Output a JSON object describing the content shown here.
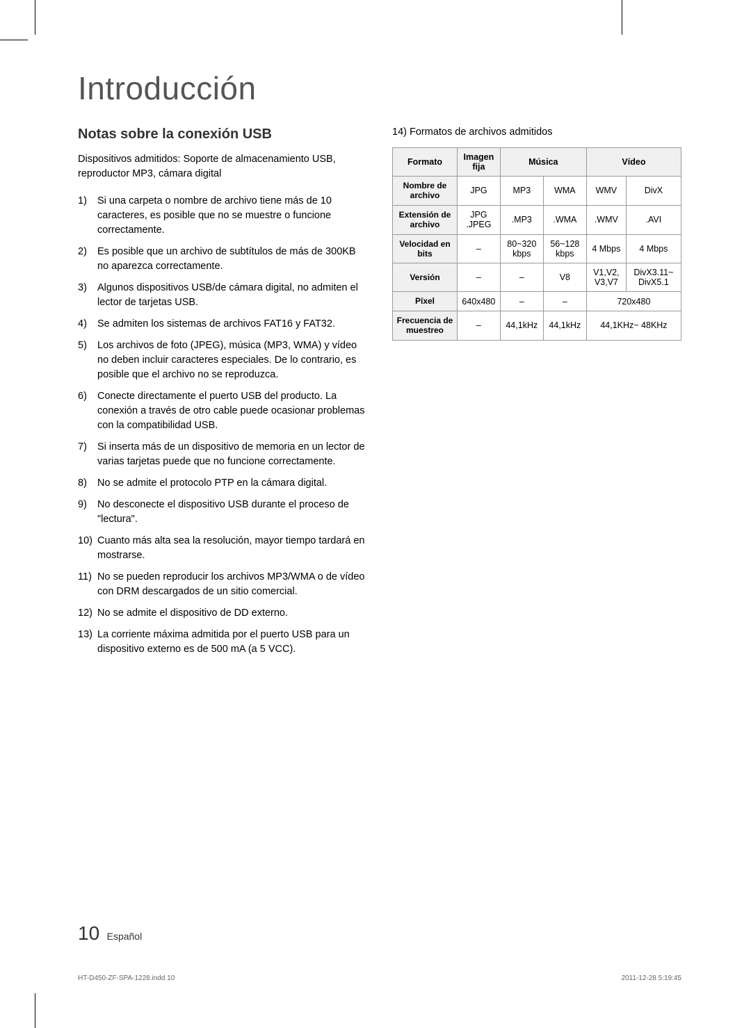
{
  "page": {
    "main_title": "Introducción",
    "section_title": "Notas sobre la conexión USB",
    "intro_text": "Dispositivos admitidos: Soporte de almacenamiento USB, reproductor MP3, cámara digital",
    "notes": [
      "Si una carpeta o nombre de archivo tiene más de 10 caracteres, es posible que no se muestre o funcione correctamente.",
      "Es posible que un archivo de subtítulos de más de 300KB no aparezca correctamente.",
      "Algunos dispositivos USB/de cámara digital, no admiten el lector de tarjetas USB.",
      "Se admiten los sistemas de archivos FAT16 y FAT32.",
      "Los archivos de foto (JPEG), música (MP3, WMA) y vídeo no deben incluir caracteres especiales. De lo contrario, es posible que el archivo no se reproduzca.",
      "Conecte directamente el puerto USB del producto. La conexión a través de otro cable puede ocasionar problemas con la compatibilidad USB.",
      "Si inserta más de un dispositivo de memoria en un lector de varias tarjetas puede que no funcione correctamente.",
      "No se admite el protocolo PTP en la cámara digital.",
      "No desconecte el dispositivo USB durante el proceso de \"lectura\".",
      "Cuanto más alta sea la resolución, mayor tiempo tardará en mostrarse.",
      "No se pueden reproducir los archivos MP3/WMA o de vídeo con DRM descargados de un sitio comercial.",
      "No se admite el dispositivo de DD externo.",
      "La corriente máxima admitida por el puerto USB para un dispositivo externo es de 500 mA (a 5 VCC)."
    ],
    "item14_label": "14) Formatos de archivos admitidos",
    "table": {
      "header": {
        "formato": "Formato",
        "imagen": "Imagen fija",
        "musica": "Música",
        "video": "Vídeo"
      },
      "rows": {
        "nombre": {
          "label": "Nombre de archivo",
          "imagen": "JPG",
          "mus1": "MP3",
          "mus2": "WMA",
          "vid1": "WMV",
          "vid2": "DivX"
        },
        "ext": {
          "label": "Extensión de archivo",
          "imagen": "JPG .JPEG",
          "mus1": ".MP3",
          "mus2": ".WMA",
          "vid1": ".WMV",
          "vid2": ".AVI"
        },
        "bitrate": {
          "label": "Velocidad en bits",
          "imagen": "–",
          "mus1": "80~320 kbps",
          "mus2": "56~128 kbps",
          "vid1": "4 Mbps",
          "vid2": "4 Mbps"
        },
        "version": {
          "label": "Versión",
          "imagen": "–",
          "mus1": "–",
          "mus2": "V8",
          "vid1": "V1,V2, V3,V7",
          "vid2": "DivX3.11~ DivX5.1"
        },
        "pixel": {
          "label": "Píxel",
          "imagen": "640x480",
          "mus1": "–",
          "mus2": "–",
          "vid": "720x480"
        },
        "freq": {
          "label": "Frecuencia de muestreo",
          "imagen": "–",
          "mus1": "44,1kHz",
          "mus2": "44,1kHz",
          "vid": "44,1KHz~ 48KHz"
        }
      }
    },
    "footer": {
      "page_num": "10",
      "lang": "Español"
    },
    "print_meta": {
      "left": "HT-D450-ZF-SPA-1228.indd   10",
      "right": "2011-12-28    5:19:45"
    }
  }
}
